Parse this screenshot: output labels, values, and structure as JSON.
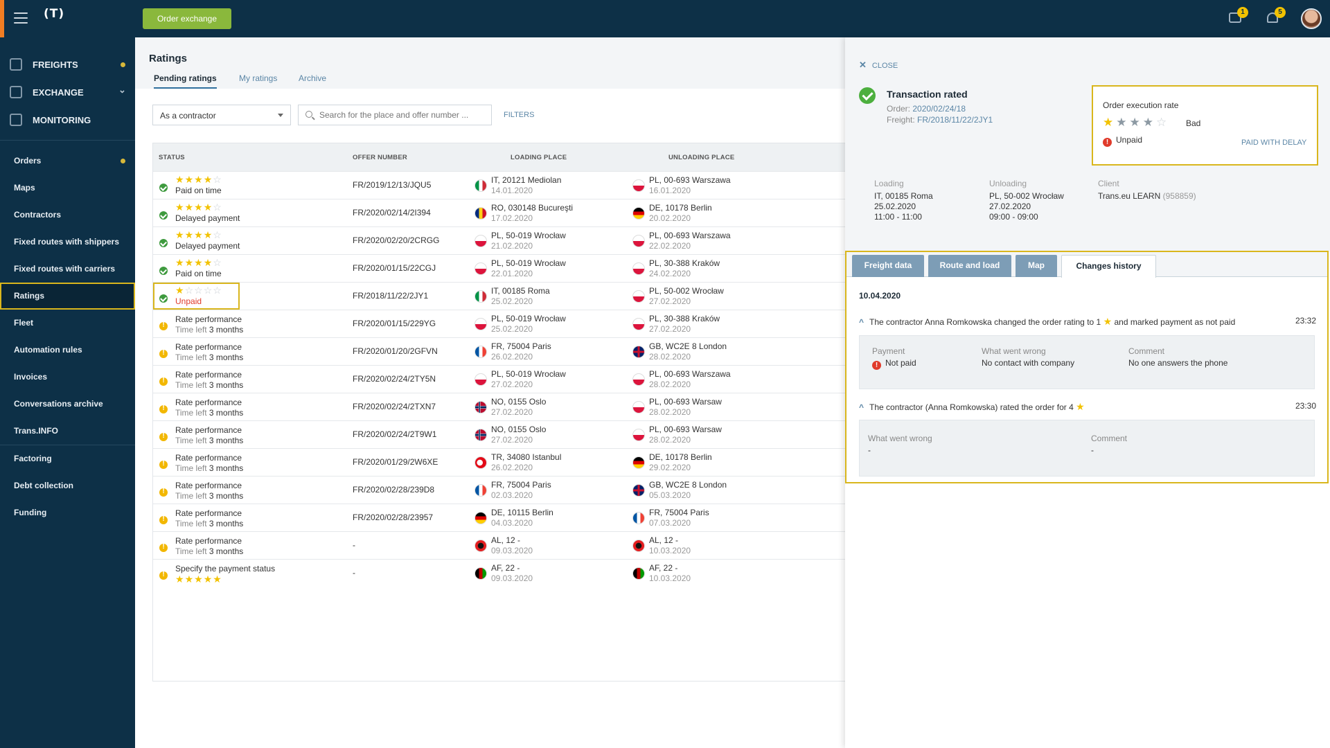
{
  "topbar": {
    "logo": "(T)",
    "order_exchange": "Order exchange",
    "messages_count": "1",
    "notifications_count": "5"
  },
  "sidebar": {
    "main": [
      {
        "label": "FREIGHTS"
      },
      {
        "label": "EXCHANGE"
      },
      {
        "label": "MONITORING"
      }
    ],
    "items": [
      {
        "label": "Orders"
      },
      {
        "label": "Maps"
      },
      {
        "label": "Contractors"
      },
      {
        "label": "Fixed routes with shippers"
      },
      {
        "label": "Fixed routes with carriers"
      },
      {
        "label": "Ratings"
      },
      {
        "label": "Fleet"
      },
      {
        "label": "Automation rules"
      },
      {
        "label": "Invoices"
      },
      {
        "label": "Conversations archive"
      },
      {
        "label": "Trans.INFO"
      },
      {
        "label": "Factoring"
      },
      {
        "label": "Debt collection"
      },
      {
        "label": "Funding"
      }
    ]
  },
  "page": {
    "title": "Ratings",
    "tabs": [
      "Pending ratings",
      "My ratings",
      "Archive"
    ],
    "filter_select": "As a contractor",
    "search_placeholder": "Search for the place and offer number ...",
    "filters_label": "FILTERS",
    "columns": [
      "STATUS",
      "OFFER NUMBER",
      "LOADING PLACE",
      "UNLOADING PLACE"
    ]
  },
  "rows": [
    {
      "status": "Paid on time",
      "rating": 4,
      "offer": "FR/2019/12/13/JQU5",
      "load": "IT, 20121 Mediolan",
      "load_date": "14.01.2020",
      "unload": "PL, 00-693 Warszawa",
      "unload_date": "16.01.2020"
    },
    {
      "status": "Delayed payment",
      "rating": 4,
      "offer": "FR/2020/02/14/2I394",
      "load": "RO, 030148 Bucureşti",
      "load_date": "17.02.2020",
      "unload": "DE, 10178 Berlin",
      "unload_date": "20.02.2020"
    },
    {
      "status": "Delayed payment",
      "rating": 4,
      "offer": "FR/2020/02/20/2CRGG",
      "load": "PL, 50-019 Wrocław",
      "load_date": "21.02.2020",
      "unload": "PL, 00-693 Warszawa",
      "unload_date": "22.02.2020"
    },
    {
      "status": "Paid on time",
      "rating": 4,
      "offer": "FR/2020/01/15/22CGJ",
      "load": "PL, 50-019 Wrocław",
      "load_date": "22.01.2020",
      "unload": "PL, 30-388 Kraków",
      "unload_date": "24.02.2020"
    },
    {
      "status": "Unpaid",
      "rating": 1,
      "offer": "FR/2018/11/22/2JY1",
      "load": "IT, 00185 Roma",
      "load_date": "25.02.2020",
      "unload": "PL, 50-002 Wrocław",
      "unload_date": "27.02.2020"
    },
    {
      "status": "Rate performance",
      "time_left": "Time left",
      "months": "3 months",
      "offer": "FR/2020/01/15/229YG",
      "load": "PL, 50-019 Wrocław",
      "load_date": "25.02.2020",
      "unload": "PL, 30-388 Kraków",
      "unload_date": "27.02.2020"
    },
    {
      "status": "Rate performance",
      "time_left": "Time left",
      "months": "3 months",
      "offer": "FR/2020/01/20/2GFVN",
      "load": "FR, 75004 Paris",
      "load_date": "26.02.2020",
      "unload": "GB, WC2E 8 London",
      "unload_date": "28.02.2020"
    },
    {
      "status": "Rate performance",
      "time_left": "Time left",
      "months": "3 months",
      "offer": "FR/2020/02/24/2TY5N",
      "load": "PL, 50-019 Wrocław",
      "load_date": "27.02.2020",
      "unload": "PL, 00-693 Warszawa",
      "unload_date": "28.02.2020"
    },
    {
      "status": "Rate performance",
      "time_left": "Time left",
      "months": "3 months",
      "offer": "FR/2020/02/24/2TXN7",
      "load": "NO, 0155 Oslo",
      "load_date": "27.02.2020",
      "unload": "PL, 00-693 Warsaw",
      "unload_date": "28.02.2020"
    },
    {
      "status": "Rate performance",
      "time_left": "Time left",
      "months": "3 months",
      "offer": "FR/2020/02/24/2T9W1",
      "load": "NO, 0155 Oslo",
      "load_date": "27.02.2020",
      "unload": "PL, 00-693 Warsaw",
      "unload_date": "28.02.2020"
    },
    {
      "status": "Rate performance",
      "time_left": "Time left",
      "months": "3 months",
      "offer": "FR/2020/01/29/2W6XE",
      "load": "TR, 34080 Istanbul",
      "load_date": "26.02.2020",
      "unload": "DE, 10178 Berlin",
      "unload_date": "29.02.2020"
    },
    {
      "status": "Rate performance",
      "time_left": "Time left",
      "months": "3 months",
      "offer": "FR/2020/02/28/239D8",
      "load": "FR, 75004 Paris",
      "load_date": "02.03.2020",
      "unload": "GB, WC2E 8 London",
      "unload_date": "05.03.2020"
    },
    {
      "status": "Rate performance",
      "time_left": "Time left",
      "months": "3 months",
      "offer": "FR/2020/02/28/23957",
      "load": "DE, 10115 Berlin",
      "load_date": "04.03.2020",
      "unload": "FR, 75004 Paris",
      "unload_date": "07.03.2020"
    },
    {
      "status": "Rate performance",
      "time_left": "Time left",
      "months": "3 months",
      "offer": "-",
      "load": "AL, 12 -",
      "load_date": "09.03.2020",
      "unload": "AL, 12 -",
      "unload_date": "10.03.2020"
    },
    {
      "status": "Specify the payment status",
      "rating": 5,
      "offer": "-",
      "load": "AF, 22 -",
      "load_date": "09.03.2020",
      "unload": "AF, 22 -",
      "unload_date": "10.03.2020"
    }
  ],
  "panel": {
    "close": "CLOSE",
    "title": "Transaction rated",
    "order_label": "Order:",
    "order_value": "2020/02/24/18",
    "freight_label": "Freight:",
    "freight_value": "FR/2018/11/22/2JY1",
    "rate_title": "Order execution rate",
    "rate_stars": 1,
    "rate_text": "Bad",
    "payment_status": "Unpaid",
    "payment_link": "PAID WITH DELAY",
    "loading": {
      "h": "Loading",
      "place": "IT, 00185 Roma",
      "date": "25.02.2020",
      "time": "11:00 - 11:00"
    },
    "unloading": {
      "h": "Unloading",
      "place": "PL, 50-002 Wrocław",
      "date": "27.02.2020",
      "time": "09:00 - 09:00"
    },
    "client": {
      "h": "Client",
      "name": "Trans.eu LEARN",
      "id": "(958859)"
    },
    "tabs": [
      "Freight data",
      "Route and load",
      "Map",
      "Changes history"
    ],
    "history_date": "10.04.2020",
    "entry1": {
      "text_a": "The contractor Anna Romkowska changed the order rating to 1",
      "text_b": "and marked payment as not paid",
      "time": "23:32",
      "payment_h": "Payment",
      "payment_v": "Not paid",
      "wrong_h": "What went wrong",
      "wrong_v": "No contact with company",
      "comment_h": "Comment",
      "comment_v": "No one answers the phone"
    },
    "entry2": {
      "text_a": "The contractor (Anna Romkowska) rated the order for  4",
      "time": "23:30",
      "wrong_h": "What went wrong",
      "wrong_v": "-",
      "comment_h": "Comment",
      "comment_v": "-"
    }
  },
  "colors": {
    "navy": "#0d3047",
    "accent_green": "#8ab83c",
    "highlight": "#d9b61c",
    "star": "#f2c200"
  }
}
